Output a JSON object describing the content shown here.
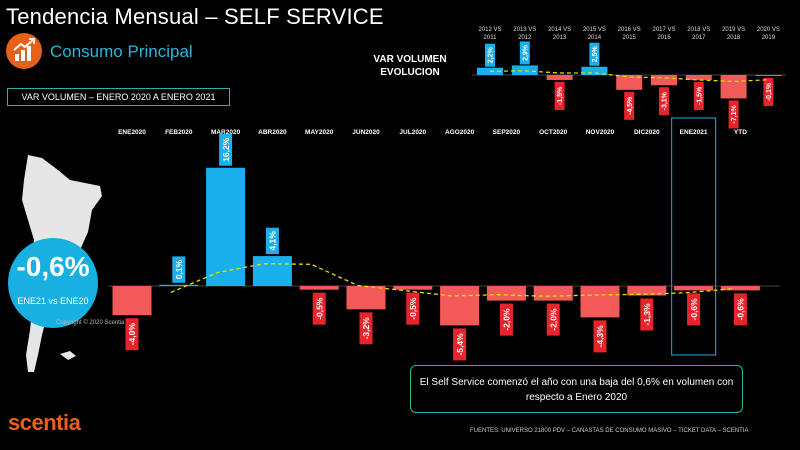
{
  "header": {
    "title": "Tendencia Mensual –  SELF SERVICE",
    "subtitle": "Consumo Principal",
    "period_label": "VAR VOLUMEN – ENERO 2020 A ENERO 2021",
    "logo_icon": "growth-chart-icon"
  },
  "kpi": {
    "value": "-0,6%",
    "label": "ENE21 vs ENE20"
  },
  "copyright": "Copyright © 2020 Scentia",
  "comment": "El Self Service comenzó el año con una baja del 0,6% en volumen con respecto a Enero 2020",
  "sources": "FUENTES: UNIVERSO 21800 PDV – CANASTAS DE CONSUMO MASIVO – TICKET DATA  – SCENTIA",
  "brand": "scentia",
  "colors": {
    "positive": "#1ab0ee",
    "negative": "#f25a5a",
    "trend": "#e8e000",
    "accent": "#e8611a"
  },
  "chart_data": [
    {
      "type": "bar",
      "categories": [
        "ENE2020",
        "FEB2020",
        "MAR2020",
        "ABR2020",
        "MAY2020",
        "JUN2020",
        "JUL2020",
        "AGO2020",
        "SEP2020",
        "OCT2020",
        "NOV2020",
        "DIC2020",
        "ENE2021",
        "YTD"
      ],
      "values": [
        -4.0,
        0.1,
        16.2,
        4.1,
        -0.5,
        -3.2,
        -0.5,
        -5.4,
        -2.0,
        -2.0,
        -4.3,
        -1.3,
        -0.6,
        -0.6
      ],
      "labels": [
        "-4,0%",
        "0,1%",
        "16,2%",
        "4,1%",
        "-0,5%",
        "-3,2%",
        "-0,5%",
        "-5,4%",
        "-2,0%",
        "-2,0%",
        "-4,3%",
        "-1,3%",
        "-0,6%",
        "-0,6%"
      ],
      "highlight": "ENE2021",
      "trend_line": "dashed moving average"
    },
    {
      "type": "bar",
      "title": "VAR VOLUMEN EVOLUCION",
      "categories": [
        "2012 VS 2011",
        "2013 VS 2012",
        "2014 VS 2013",
        "2015 VS 2014",
        "2016 VS 2015",
        "2017 VS 2016",
        "2018 VS 2017",
        "2019 VS 2018",
        "2020 VS 2019"
      ],
      "category_lines": [
        [
          "2012 VS",
          "2011"
        ],
        [
          "2013 VS",
          "2012"
        ],
        [
          "2014 VS",
          "2013"
        ],
        [
          "2015 VS",
          "2014"
        ],
        [
          "2016 VS",
          "2015"
        ],
        [
          "2017 VS",
          "2016"
        ],
        [
          "2018 VS",
          "2017"
        ],
        [
          "2019 VS",
          "2018"
        ],
        [
          "2020 VS",
          "2019"
        ]
      ],
      "values": [
        2.2,
        2.9,
        -1.5,
        2.5,
        -4.5,
        -3.1,
        -1.5,
        -7.1,
        -0.1
      ],
      "labels": [
        "2,2%",
        "2,9%",
        "-1,5%",
        "2,5%",
        "-4,5%",
        "-3,1%",
        "-1,5%",
        "-7,1%",
        "-0,1%"
      ],
      "trend_line": "dashed moving average"
    }
  ]
}
